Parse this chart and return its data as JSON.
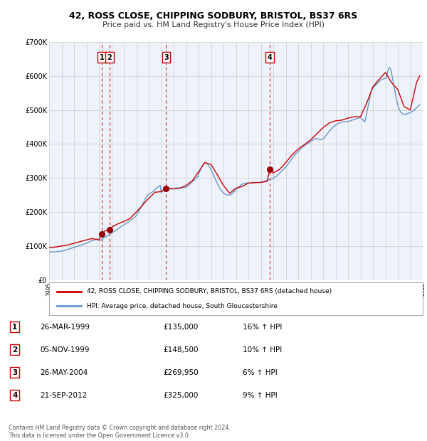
{
  "title1": "42, ROSS CLOSE, CHIPPING SODBURY, BRISTOL, BS37 6RS",
  "title2": "Price paid vs. HM Land Registry's House Price Index (HPI)",
  "legend1": "42, ROSS CLOSE, CHIPPING SODBURY, BRISTOL, BS37 6RS (detached house)",
  "legend2": "HPI: Average price, detached house, South Gloucestershire",
  "footnote1": "Contains HM Land Registry data © Crown copyright and database right 2024.",
  "footnote2": "This data is licensed under the Open Government Licence v3.0.",
  "ylim": [
    0,
    700000
  ],
  "yticks": [
    0,
    100000,
    200000,
    300000,
    400000,
    500000,
    600000,
    700000
  ],
  "ytick_labels": [
    "£0",
    "£100K",
    "£200K",
    "£300K",
    "£400K",
    "£500K",
    "£600K",
    "£700K"
  ],
  "hpi_color": "#6699cc",
  "price_color": "#cc0000",
  "sale_marker_color": "#990000",
  "vline_color": "#cc0000",
  "grid_color": "#cccccc",
  "background_color": "#eef2fa",
  "sale_dates_num": [
    1999.23,
    1999.84,
    2004.39,
    2012.72
  ],
  "sale_prices": [
    135000,
    148500,
    269950,
    325000
  ],
  "sale_labels": [
    "1",
    "2",
    "3",
    "4"
  ],
  "vline_dates": [
    1999.23,
    1999.84,
    2004.39,
    2012.72
  ],
  "table_entries": [
    {
      "num": "1",
      "date": "26-MAR-1999",
      "price": "£135,000",
      "pct": "16% ↑ HPI"
    },
    {
      "num": "2",
      "date": "05-NOV-1999",
      "price": "£148,500",
      "pct": "10% ↑ HPI"
    },
    {
      "num": "3",
      "date": "26-MAY-2004",
      "price": "£269,950",
      "pct": "6% ↑ HPI"
    },
    {
      "num": "4",
      "date": "21-SEP-2012",
      "price": "£325,000",
      "pct": "9% ↑ HPI"
    }
  ],
  "hpi_data_years": [
    1995.0,
    1995.08,
    1995.17,
    1995.25,
    1995.33,
    1995.42,
    1995.5,
    1995.58,
    1995.67,
    1995.75,
    1995.83,
    1995.92,
    1996.0,
    1996.08,
    1996.17,
    1996.25,
    1996.33,
    1996.42,
    1996.5,
    1996.58,
    1996.67,
    1996.75,
    1996.83,
    1996.92,
    1997.0,
    1997.08,
    1997.17,
    1997.25,
    1997.33,
    1997.42,
    1997.5,
    1997.58,
    1997.67,
    1997.75,
    1997.83,
    1997.92,
    1998.0,
    1998.08,
    1998.17,
    1998.25,
    1998.33,
    1998.42,
    1998.5,
    1998.58,
    1998.67,
    1998.75,
    1998.83,
    1998.92,
    1999.0,
    1999.08,
    1999.17,
    1999.25,
    1999.33,
    1999.42,
    1999.5,
    1999.58,
    1999.67,
    1999.75,
    1999.83,
    1999.92,
    2000.0,
    2000.08,
    2000.17,
    2000.25,
    2000.33,
    2000.42,
    2000.5,
    2000.58,
    2000.67,
    2000.75,
    2000.83,
    2000.92,
    2001.0,
    2001.08,
    2001.17,
    2001.25,
    2001.33,
    2001.42,
    2001.5,
    2001.58,
    2001.67,
    2001.75,
    2001.83,
    2001.92,
    2002.0,
    2002.08,
    2002.17,
    2002.25,
    2002.33,
    2002.42,
    2002.5,
    2002.58,
    2002.67,
    2002.75,
    2002.83,
    2002.92,
    2003.0,
    2003.08,
    2003.17,
    2003.25,
    2003.33,
    2003.42,
    2003.5,
    2003.58,
    2003.67,
    2003.75,
    2003.83,
    2003.92,
    2004.0,
    2004.08,
    2004.17,
    2004.25,
    2004.33,
    2004.42,
    2004.5,
    2004.58,
    2004.67,
    2004.75,
    2004.83,
    2004.92,
    2005.0,
    2005.08,
    2005.17,
    2005.25,
    2005.33,
    2005.42,
    2005.5,
    2005.58,
    2005.67,
    2005.75,
    2005.83,
    2005.92,
    2006.0,
    2006.08,
    2006.17,
    2006.25,
    2006.33,
    2006.42,
    2006.5,
    2006.58,
    2006.67,
    2006.75,
    2006.83,
    2006.92,
    2007.0,
    2007.08,
    2007.17,
    2007.25,
    2007.33,
    2007.42,
    2007.5,
    2007.58,
    2007.67,
    2007.75,
    2007.83,
    2007.92,
    2008.0,
    2008.08,
    2008.17,
    2008.25,
    2008.33,
    2008.42,
    2008.5,
    2008.58,
    2008.67,
    2008.75,
    2008.83,
    2008.92,
    2009.0,
    2009.08,
    2009.17,
    2009.25,
    2009.33,
    2009.42,
    2009.5,
    2009.58,
    2009.67,
    2009.75,
    2009.83,
    2009.92,
    2010.0,
    2010.08,
    2010.17,
    2010.25,
    2010.33,
    2010.42,
    2010.5,
    2010.58,
    2010.67,
    2010.75,
    2010.83,
    2010.92,
    2011.0,
    2011.08,
    2011.17,
    2011.25,
    2011.33,
    2011.42,
    2011.5,
    2011.58,
    2011.67,
    2011.75,
    2011.83,
    2011.92,
    2012.0,
    2012.08,
    2012.17,
    2012.25,
    2012.33,
    2012.42,
    2012.5,
    2012.58,
    2012.67,
    2012.75,
    2012.83,
    2012.92,
    2013.0,
    2013.08,
    2013.17,
    2013.25,
    2013.33,
    2013.42,
    2013.5,
    2013.58,
    2013.67,
    2013.75,
    2013.83,
    2013.92,
    2014.0,
    2014.08,
    2014.17,
    2014.25,
    2014.33,
    2014.42,
    2014.5,
    2014.58,
    2014.67,
    2014.75,
    2014.83,
    2014.92,
    2015.0,
    2015.08,
    2015.17,
    2015.25,
    2015.33,
    2015.42,
    2015.5,
    2015.58,
    2015.67,
    2015.75,
    2015.83,
    2015.92,
    2016.0,
    2016.08,
    2016.17,
    2016.25,
    2016.33,
    2016.42,
    2016.5,
    2016.58,
    2016.67,
    2016.75,
    2016.83,
    2016.92,
    2017.0,
    2017.08,
    2017.17,
    2017.25,
    2017.33,
    2017.42,
    2017.5,
    2017.58,
    2017.67,
    2017.75,
    2017.83,
    2017.92,
    2018.0,
    2018.08,
    2018.17,
    2018.25,
    2018.33,
    2018.42,
    2018.5,
    2018.58,
    2018.67,
    2018.75,
    2018.83,
    2018.92,
    2019.0,
    2019.08,
    2019.17,
    2019.25,
    2019.33,
    2019.42,
    2019.5,
    2019.58,
    2019.67,
    2019.75,
    2019.83,
    2019.92,
    2020.0,
    2020.08,
    2020.17,
    2020.25,
    2020.33,
    2020.42,
    2020.5,
    2020.58,
    2020.67,
    2020.75,
    2020.83,
    2020.92,
    2021.0,
    2021.08,
    2021.17,
    2021.25,
    2021.33,
    2021.42,
    2021.5,
    2021.58,
    2021.67,
    2021.75,
    2021.83,
    2021.92,
    2022.0,
    2022.08,
    2022.17,
    2022.25,
    2022.33,
    2022.42,
    2022.5,
    2022.58,
    2022.67,
    2022.75,
    2022.83,
    2022.92,
    2023.0,
    2023.08,
    2023.17,
    2023.25,
    2023.33,
    2023.42,
    2023.5,
    2023.58,
    2023.67,
    2023.75,
    2023.83,
    2023.92,
    2024.0,
    2024.08,
    2024.17,
    2024.25,
    2024.33,
    2024.42,
    2024.5,
    2024.58,
    2024.67,
    2024.75
  ],
  "hpi_data_values": [
    82000,
    82500,
    83000,
    83500,
    83000,
    82500,
    83000,
    83500,
    84000,
    84500,
    84000,
    84500,
    85000,
    85500,
    86000,
    87000,
    88000,
    89000,
    90000,
    91000,
    92000,
    93000,
    94000,
    95000,
    96000,
    97000,
    98000,
    99000,
    100000,
    101000,
    102000,
    103000,
    104000,
    105000,
    106000,
    107000,
    108000,
    109500,
    111000,
    112500,
    114000,
    115500,
    116000,
    117000,
    118000,
    119000,
    120000,
    121000,
    116000,
    117000,
    118000,
    120000,
    122000,
    124000,
    126000,
    128000,
    130000,
    132000,
    134000,
    136000,
    138000,
    140000,
    142000,
    144000,
    146000,
    148000,
    150000,
    152000,
    154000,
    156000,
    158000,
    160000,
    162000,
    164000,
    166000,
    168000,
    170000,
    172000,
    175000,
    177000,
    179000,
    181000,
    183000,
    186000,
    190000,
    195000,
    200000,
    205000,
    210000,
    216000,
    222000,
    228000,
    234000,
    240000,
    245000,
    250000,
    252000,
    254000,
    256000,
    258000,
    260000,
    263000,
    266000,
    269000,
    271000,
    274000,
    276000,
    278000,
    257000,
    260000,
    263000,
    266000,
    268000,
    267000,
    267000,
    268000,
    268000,
    268000,
    268000,
    268000,
    268000,
    269000,
    270000,
    271000,
    271000,
    271000,
    271000,
    271000,
    271000,
    272000,
    272000,
    272000,
    273000,
    275000,
    277000,
    280000,
    283000,
    286000,
    289000,
    292000,
    294000,
    297000,
    300000,
    303000,
    310000,
    318000,
    325000,
    332000,
    338000,
    342000,
    345000,
    345000,
    343000,
    340000,
    336000,
    331000,
    325000,
    318000,
    312000,
    305000,
    298000,
    291000,
    284000,
    278000,
    272000,
    267000,
    263000,
    259000,
    256000,
    254000,
    252000,
    251000,
    250000,
    250000,
    250000,
    251000,
    253000,
    256000,
    259000,
    262000,
    265000,
    268000,
    271000,
    274000,
    277000,
    280000,
    282000,
    283000,
    284000,
    285000,
    285000,
    285000,
    285000,
    285000,
    285000,
    286000,
    287000,
    287000,
    287000,
    287000,
    287000,
    287000,
    287000,
    287000,
    287000,
    288000,
    289000,
    290000,
    291000,
    292000,
    293000,
    294000,
    295000,
    296000,
    297000,
    298000,
    299000,
    301000,
    303000,
    305000,
    308000,
    311000,
    314000,
    317000,
    320000,
    323000,
    326000,
    329000,
    332000,
    336000,
    340000,
    344000,
    348000,
    352000,
    357000,
    361000,
    365000,
    369000,
    372000,
    375000,
    378000,
    381000,
    384000,
    387000,
    390000,
    393000,
    395000,
    397000,
    399000,
    401000,
    403000,
    405000,
    407000,
    409000,
    411000,
    413000,
    415000,
    416000,
    416000,
    415000,
    414000,
    413000,
    413000,
    413000,
    415000,
    418000,
    422000,
    426000,
    430000,
    434000,
    438000,
    441000,
    444000,
    447000,
    450000,
    453000,
    455000,
    457000,
    459000,
    461000,
    462000,
    463000,
    464000,
    465000,
    465000,
    465000,
    465000,
    465000,
    466000,
    467000,
    468000,
    469000,
    470000,
    471000,
    472000,
    473000,
    474000,
    475000,
    476000,
    477000,
    478000,
    475000,
    472000,
    468000,
    465000,
    475000,
    490000,
    505000,
    520000,
    535000,
    550000,
    560000,
    565000,
    568000,
    571000,
    574000,
    577000,
    580000,
    583000,
    586000,
    589000,
    590000,
    591000,
    592000,
    593000,
    594000,
    610000,
    622000,
    625000,
    620000,
    608000,
    592000,
    575000,
    558000,
    542000,
    527000,
    514000,
    505000,
    498000,
    493000,
    490000,
    488000,
    487000,
    487000,
    488000,
    489000,
    490000,
    491000,
    492000,
    494000,
    496000,
    498000,
    500000,
    503000,
    506000,
    509000,
    512000,
    515000
  ],
  "price_data_years": [
    1995.0,
    1995.5,
    1996.0,
    1996.5,
    1997.0,
    1997.5,
    1998.0,
    1998.42,
    1999.0,
    1999.23,
    1999.5,
    1999.84,
    2000.0,
    2000.5,
    2001.0,
    2001.5,
    2002.0,
    2002.5,
    2003.0,
    2003.5,
    2004.0,
    2004.39,
    2004.5,
    2005.0,
    2005.5,
    2006.0,
    2006.5,
    2007.0,
    2007.5,
    2008.0,
    2008.5,
    2009.0,
    2009.5,
    2010.0,
    2010.5,
    2011.0,
    2011.5,
    2012.0,
    2012.5,
    2012.72,
    2013.0,
    2013.5,
    2014.0,
    2014.5,
    2015.0,
    2015.5,
    2016.0,
    2016.5,
    2017.0,
    2017.5,
    2018.0,
    2018.5,
    2019.0,
    2019.5,
    2020.0,
    2020.5,
    2021.0,
    2021.5,
    2022.0,
    2022.5,
    2023.0,
    2023.5,
    2024.0,
    2024.5,
    2024.75
  ],
  "price_data_values": [
    95000,
    97000,
    100000,
    103000,
    108000,
    113000,
    118000,
    122000,
    118000,
    135000,
    145000,
    148500,
    155000,
    165000,
    172000,
    181000,
    200000,
    220000,
    240000,
    258000,
    260000,
    269950,
    271000,
    268000,
    270000,
    278000,
    292000,
    318000,
    345000,
    340000,
    310000,
    278000,
    255000,
    270000,
    275000,
    285000,
    286000,
    287000,
    290000,
    325000,
    315000,
    325000,
    345000,
    368000,
    385000,
    398000,
    412000,
    430000,
    448000,
    462000,
    468000,
    470000,
    476000,
    480000,
    480000,
    520000,
    568000,
    590000,
    610000,
    580000,
    560000,
    510000,
    500000,
    580000,
    600000
  ]
}
